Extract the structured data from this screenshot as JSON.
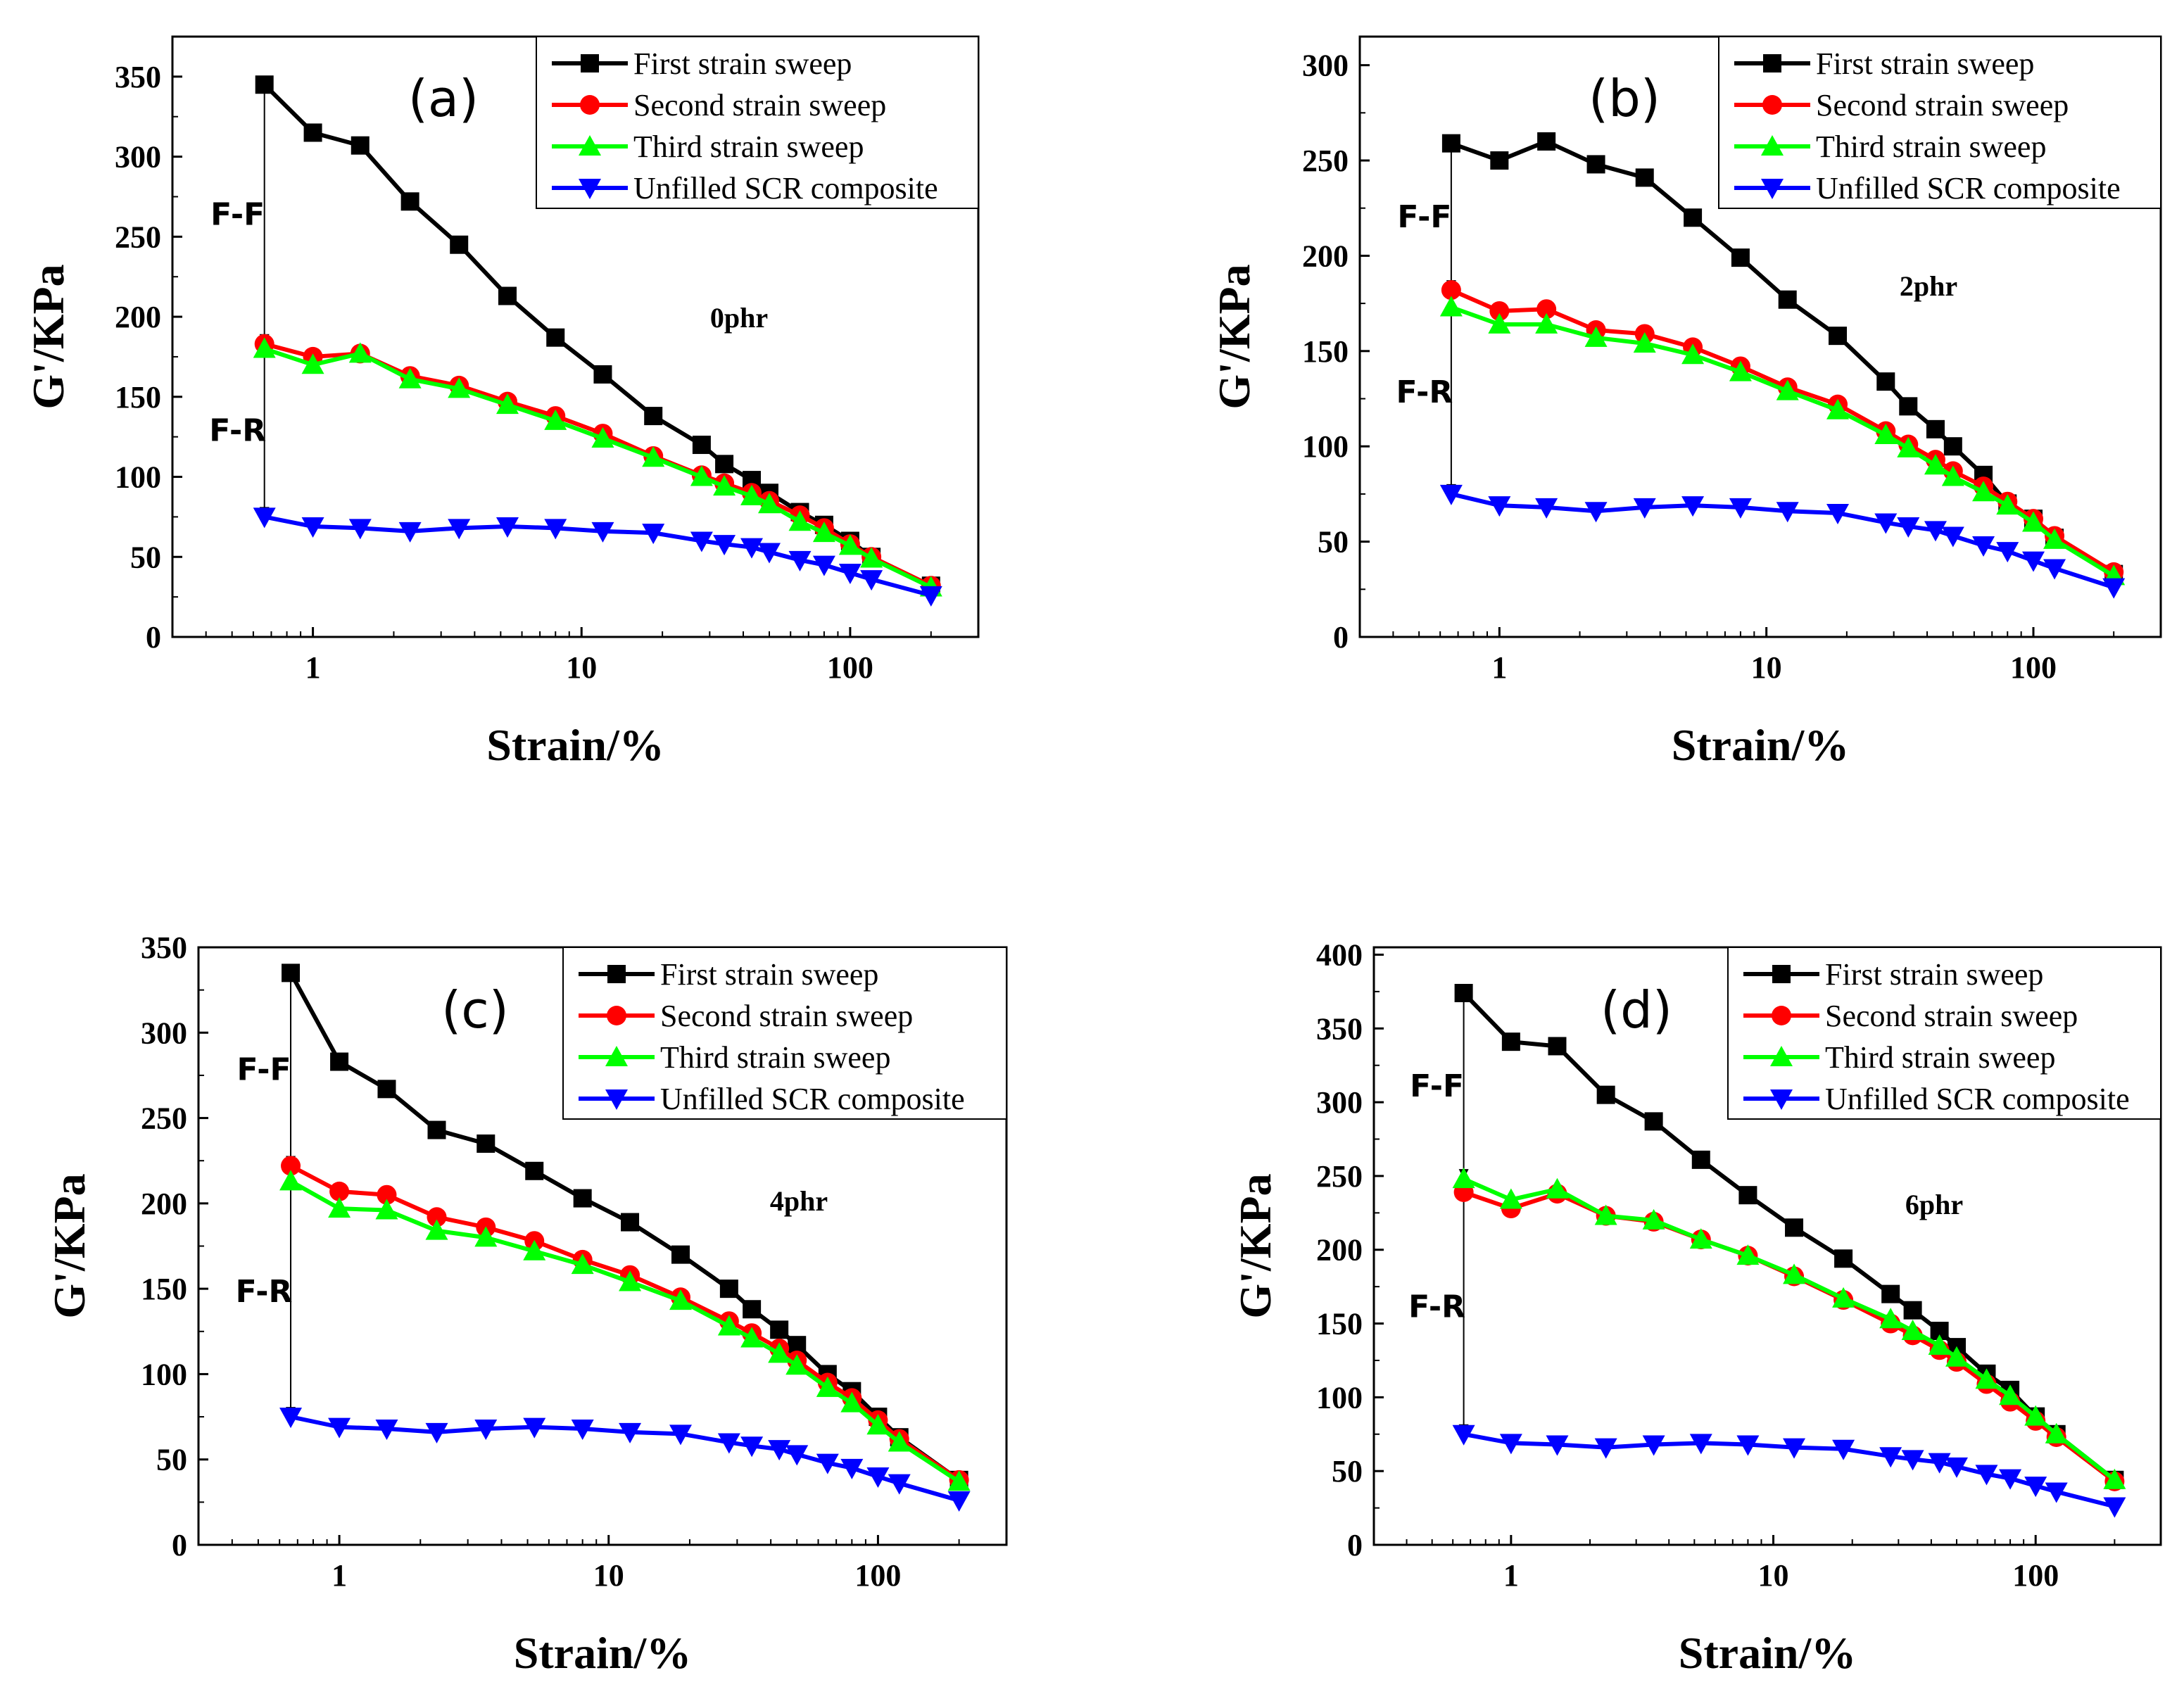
{
  "chart_data": [
    {
      "type": "line",
      "panel_label": "(a)",
      "concentration_label": "0phr",
      "xlabel": "Strain/%",
      "ylabel": "G'/KPa",
      "xscale": "log",
      "xlim": [
        0.3,
        300
      ],
      "ylim": [
        0,
        375
      ],
      "yticks": [
        0,
        50,
        100,
        150,
        200,
        250,
        300,
        350
      ],
      "xticks": [
        1,
        10,
        100
      ],
      "xtick_labels": [
        "1",
        "10",
        "100"
      ],
      "legend_position": "top-right",
      "annotations": [
        {
          "text": "F-F",
          "x": 0.66,
          "y_from": 345,
          "y_to": 183
        },
        {
          "text": "F-R",
          "x": 0.66,
          "y_from": 183,
          "y_to": 75
        }
      ],
      "series": [
        {
          "name": "First strain sweep",
          "color": "#000000",
          "marker": "square",
          "x": [
            0.66,
            1.0,
            1.5,
            2.3,
            3.5,
            5.3,
            8.0,
            12,
            18.5,
            28,
            34,
            43,
            50,
            65,
            80,
            100,
            120,
            200
          ],
          "y": [
            345,
            315,
            307,
            272,
            245,
            213,
            187,
            164,
            138,
            120,
            108,
            98,
            90,
            78,
            70,
            60,
            50,
            32
          ]
        },
        {
          "name": "Second strain sweep",
          "color": "#ff0000",
          "marker": "circle",
          "x": [
            0.66,
            1.0,
            1.5,
            2.3,
            3.5,
            5.3,
            8.0,
            12,
            18.5,
            28,
            34,
            43,
            50,
            65,
            80,
            100,
            120,
            200
          ],
          "y": [
            183,
            175,
            177,
            163,
            157,
            147,
            138,
            127,
            113,
            101,
            96,
            90,
            85,
            76,
            68,
            58,
            50,
            32
          ]
        },
        {
          "name": "Third strain sweep",
          "color": "#00ff00",
          "marker": "triangle-up",
          "x": [
            0.66,
            1.0,
            1.5,
            2.3,
            3.5,
            5.3,
            8.0,
            12,
            18.5,
            28,
            34,
            43,
            50,
            65,
            80,
            100,
            120,
            200
          ],
          "y": [
            180,
            170,
            177,
            161,
            155,
            145,
            135,
            124,
            112,
            100,
            94,
            88,
            83,
            72,
            65,
            57,
            49,
            31
          ]
        },
        {
          "name": "Unfilled SCR composite",
          "color": "#0000ff",
          "marker": "triangle-down",
          "x": [
            0.66,
            1.0,
            1.5,
            2.3,
            3.5,
            5.3,
            8.0,
            12,
            18.5,
            28,
            34,
            43,
            50,
            65,
            80,
            100,
            120,
            200
          ],
          "y": [
            75,
            69,
            68,
            66,
            68,
            69,
            68,
            66,
            65,
            60,
            58,
            56,
            53,
            48,
            45,
            40,
            36,
            26
          ]
        }
      ]
    },
    {
      "type": "line",
      "panel_label": "(b)",
      "concentration_label": "2phr",
      "xlabel": "Strain/%",
      "ylabel": "G'/KPa",
      "xscale": "log",
      "xlim": [
        0.3,
        300
      ],
      "ylim": [
        0,
        315
      ],
      "yticks": [
        0,
        50,
        100,
        150,
        200,
        250,
        300
      ],
      "xticks": [
        1,
        10,
        100
      ],
      "xtick_labels": [
        "1",
        "10",
        "100"
      ],
      "legend_position": "top-right",
      "annotations": [
        {
          "text": "F-F",
          "x": 0.66,
          "y_from": 259,
          "y_to": 182
        },
        {
          "text": "F-R",
          "x": 0.66,
          "y_from": 182,
          "y_to": 75
        }
      ],
      "series": [
        {
          "name": "First strain sweep",
          "color": "#000000",
          "marker": "square",
          "x": [
            0.66,
            1.0,
            1.5,
            2.3,
            3.5,
            5.3,
            8.0,
            12,
            18.5,
            28,
            34,
            43,
            50,
            65,
            80,
            100,
            120,
            200
          ],
          "y": [
            259,
            250,
            260,
            248,
            241,
            220,
            199,
            177,
            158,
            134,
            121,
            109,
            100,
            85,
            70,
            62,
            52,
            33
          ]
        },
        {
          "name": "Second strain sweep",
          "color": "#ff0000",
          "marker": "circle",
          "x": [
            0.66,
            1.0,
            1.5,
            2.3,
            3.5,
            5.3,
            8.0,
            12,
            18.5,
            28,
            34,
            43,
            50,
            65,
            80,
            100,
            120,
            200
          ],
          "y": [
            182,
            171,
            172,
            161,
            159,
            152,
            142,
            131,
            122,
            108,
            101,
            93,
            87,
            79,
            71,
            62,
            53,
            34
          ]
        },
        {
          "name": "Third strain sweep",
          "color": "#00ff00",
          "marker": "triangle-up",
          "x": [
            0.66,
            1.0,
            1.5,
            2.3,
            3.5,
            5.3,
            8.0,
            12,
            18.5,
            28,
            34,
            43,
            50,
            65,
            80,
            100,
            120,
            200
          ],
          "y": [
            173,
            164,
            164,
            157,
            154,
            148,
            139,
            129,
            119,
            106,
            99,
            90,
            84,
            76,
            69,
            60,
            51,
            32
          ]
        },
        {
          "name": "Unfilled SCR composite",
          "color": "#0000ff",
          "marker": "triangle-down",
          "x": [
            0.66,
            1.0,
            1.5,
            2.3,
            3.5,
            5.3,
            8.0,
            12,
            18.5,
            28,
            34,
            43,
            50,
            65,
            80,
            100,
            120,
            200
          ],
          "y": [
            75,
            69,
            68,
            66,
            68,
            69,
            68,
            66,
            65,
            60,
            58,
            56,
            53,
            48,
            45,
            40,
            36,
            26
          ]
        }
      ]
    },
    {
      "type": "line",
      "panel_label": "(c)",
      "concentration_label": "4phr",
      "xlabel": "Strain/%",
      "ylabel": "G'/KPa",
      "xscale": "log",
      "xlim": [
        0.3,
        300
      ],
      "ylim": [
        0,
        350
      ],
      "yticks": [
        0,
        50,
        100,
        150,
        200,
        250,
        300,
        350
      ],
      "xticks": [
        1,
        10,
        100
      ],
      "xtick_labels": [
        "1",
        "10",
        "100"
      ],
      "legend_position": "top-right",
      "annotations": [
        {
          "text": "F-F",
          "x": 0.66,
          "y_from": 335,
          "y_to": 222
        },
        {
          "text": "F-R",
          "x": 0.66,
          "y_from": 222,
          "y_to": 75
        }
      ],
      "series": [
        {
          "name": "First strain sweep",
          "color": "#000000",
          "marker": "square",
          "x": [
            0.66,
            1.0,
            1.5,
            2.3,
            3.5,
            5.3,
            8.0,
            12,
            18.5,
            28,
            34,
            43,
            50,
            65,
            80,
            100,
            120,
            200
          ],
          "y": [
            335,
            283,
            267,
            243,
            235,
            219,
            203,
            189,
            170,
            150,
            138,
            126,
            117,
            100,
            90,
            75,
            63,
            38
          ]
        },
        {
          "name": "Second strain sweep",
          "color": "#ff0000",
          "marker": "circle",
          "x": [
            0.66,
            1.0,
            1.5,
            2.3,
            3.5,
            5.3,
            8.0,
            12,
            18.5,
            28,
            34,
            43,
            50,
            65,
            80,
            100,
            120,
            200
          ],
          "y": [
            222,
            207,
            205,
            192,
            186,
            178,
            167,
            158,
            145,
            131,
            124,
            115,
            108,
            95,
            86,
            73,
            62,
            38
          ]
        },
        {
          "name": "Third strain sweep",
          "color": "#00ff00",
          "marker": "triangle-up",
          "x": [
            0.66,
            1.0,
            1.5,
            2.3,
            3.5,
            5.3,
            8.0,
            12,
            18.5,
            28,
            34,
            43,
            50,
            65,
            80,
            100,
            120,
            200
          ],
          "y": [
            213,
            197,
            196,
            184,
            180,
            172,
            164,
            154,
            143,
            128,
            121,
            112,
            105,
            92,
            83,
            70,
            60,
            37
          ]
        },
        {
          "name": "Unfilled SCR composite",
          "color": "#0000ff",
          "marker": "triangle-down",
          "x": [
            0.66,
            1.0,
            1.5,
            2.3,
            3.5,
            5.3,
            8.0,
            12,
            18.5,
            28,
            34,
            43,
            50,
            65,
            80,
            100,
            120,
            200
          ],
          "y": [
            75,
            69,
            68,
            66,
            68,
            69,
            68,
            66,
            65,
            60,
            58,
            56,
            53,
            48,
            45,
            40,
            36,
            26
          ]
        }
      ]
    },
    {
      "type": "line",
      "panel_label": "(d)",
      "concentration_label": "6phr",
      "xlabel": "Strain/%",
      "ylabel": "G'/KPa",
      "xscale": "log",
      "xlim": [
        0.3,
        300
      ],
      "ylim": [
        0,
        405
      ],
      "yticks": [
        0,
        50,
        100,
        150,
        200,
        250,
        300,
        350,
        400
      ],
      "xticks": [
        1,
        10,
        100
      ],
      "xtick_labels": [
        "1",
        "10",
        "100"
      ],
      "legend_position": "top-right",
      "annotations": [
        {
          "text": "F-F",
          "x": 0.66,
          "y_from": 374,
          "y_to": 248
        },
        {
          "text": "F-R",
          "x": 0.66,
          "y_from": 248,
          "y_to": 75
        }
      ],
      "series": [
        {
          "name": "First strain sweep",
          "color": "#000000",
          "marker": "square",
          "x": [
            0.66,
            1.0,
            1.5,
            2.3,
            3.5,
            5.3,
            8.0,
            12,
            18.5,
            28,
            34,
            43,
            50,
            65,
            80,
            100,
            120,
            200
          ],
          "y": [
            374,
            341,
            338,
            305,
            287,
            261,
            237,
            215,
            194,
            170,
            159,
            145,
            134,
            116,
            105,
            87,
            75,
            44
          ]
        },
        {
          "name": "Second strain sweep",
          "color": "#ff0000",
          "marker": "circle",
          "x": [
            0.66,
            1.0,
            1.5,
            2.3,
            3.5,
            5.3,
            8.0,
            12,
            18.5,
            28,
            34,
            43,
            50,
            65,
            80,
            100,
            120,
            200
          ],
          "y": [
            239,
            228,
            238,
            223,
            219,
            207,
            196,
            182,
            166,
            150,
            142,
            132,
            124,
            109,
            97,
            84,
            73,
            43
          ]
        },
        {
          "name": "Third strain sweep",
          "color": "#00ff00",
          "marker": "triangle-up",
          "x": [
            0.66,
            1.0,
            1.5,
            2.3,
            3.5,
            5.3,
            8.0,
            12,
            18.5,
            28,
            34,
            43,
            50,
            65,
            80,
            100,
            120,
            200
          ],
          "y": [
            248,
            234,
            241,
            223,
            220,
            207,
            196,
            183,
            167,
            153,
            145,
            135,
            127,
            112,
            101,
            87,
            75,
            44
          ]
        },
        {
          "name": "Unfilled SCR composite",
          "color": "#0000ff",
          "marker": "triangle-down",
          "x": [
            0.66,
            1.0,
            1.5,
            2.3,
            3.5,
            5.3,
            8.0,
            12,
            18.5,
            28,
            34,
            43,
            50,
            65,
            80,
            100,
            120,
            200
          ],
          "y": [
            75,
            69,
            68,
            66,
            68,
            69,
            68,
            66,
            65,
            60,
            58,
            56,
            53,
            48,
            45,
            40,
            36,
            26
          ]
        }
      ]
    }
  ]
}
